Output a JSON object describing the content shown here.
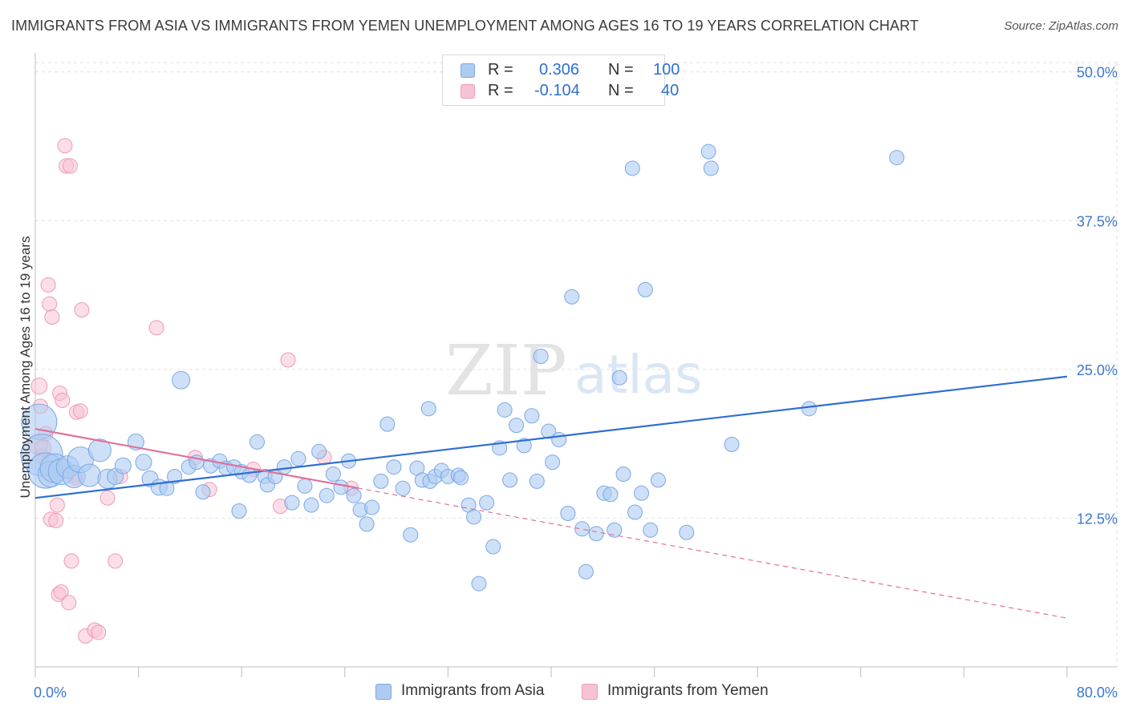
{
  "title": "IMMIGRANTS FROM ASIA VS IMMIGRANTS FROM YEMEN UNEMPLOYMENT AMONG AGES 16 TO 19 YEARS CORRELATION CHART",
  "source": "Source: ZipAtlas.com",
  "watermark": {
    "zip": "ZIP",
    "atlas": "atlas"
  },
  "colors": {
    "asia_fill": "#aecbf2",
    "asia_stroke": "#7aa8e6",
    "asia_line": "#2f6fd3",
    "yemen_fill": "#f7c3d3",
    "yemen_stroke": "#ee9ab6",
    "yemen_line": "#e0709a",
    "axis_text": "#3d78cf",
    "grid": "#e1e1e1"
  },
  "legend": {
    "rows": [
      {
        "r_label": "R =",
        "r_value": "0.306",
        "n_label": "N =",
        "n_value": "100"
      },
      {
        "r_label": "R =",
        "r_value": "-0.104",
        "n_label": "N =",
        "n_value": "40"
      }
    ]
  },
  "chart_data": {
    "type": "scatter",
    "title": "IMMIGRANTS FROM ASIA VS IMMIGRANTS FROM YEMEN UNEMPLOYMENT AMONG AGES 16 TO 19 YEARS CORRELATION CHART",
    "xlabel": "",
    "ylabel": "Unemployment Among Ages 16 to 19 years",
    "xlim": [
      0,
      80
    ],
    "ylim": [
      0,
      52
    ],
    "x_tick_labels": [
      "0.0%",
      "80.0%"
    ],
    "y_ticks": [
      12.5,
      25.0,
      37.5,
      50.0
    ],
    "y_tick_labels": [
      "12.5%",
      "25.0%",
      "37.5%",
      "50.0%"
    ],
    "grid": true,
    "legend_position": "top-center",
    "series": [
      {
        "name": "Immigrants from Asia",
        "r": 0.306,
        "n": 100,
        "trend": {
          "x": [
            0,
            80
          ],
          "y": [
            14.2,
            24.4
          ],
          "dashed_from": null
        },
        "points": [
          [
            0.3,
            20.6,
            22
          ],
          [
            0.5,
            17.8,
            26
          ],
          [
            0.8,
            16.5,
            22
          ],
          [
            1.2,
            16.2,
            16
          ],
          [
            1.5,
            16.7,
            18
          ],
          [
            2.0,
            16.4,
            16
          ],
          [
            2.5,
            16.8,
            14
          ],
          [
            3.0,
            16.0,
            14
          ],
          [
            3.5,
            17.4,
            16
          ],
          [
            4.2,
            16.1,
            14
          ],
          [
            5.0,
            18.2,
            14
          ],
          [
            5.6,
            15.8,
            12
          ],
          [
            6.2,
            16.0,
            10
          ],
          [
            6.8,
            16.9,
            10
          ],
          [
            7.8,
            18.9,
            10
          ],
          [
            8.4,
            17.2,
            10
          ],
          [
            8.9,
            15.8,
            10
          ],
          [
            9.6,
            15.1,
            10
          ],
          [
            10.2,
            15.0,
            9
          ],
          [
            10.8,
            16.0,
            9
          ],
          [
            11.3,
            24.1,
            11
          ],
          [
            11.9,
            16.8,
            9
          ],
          [
            12.5,
            17.2,
            9
          ],
          [
            13.0,
            14.7,
            9
          ],
          [
            13.6,
            16.9,
            9
          ],
          [
            14.3,
            17.3,
            9
          ],
          [
            14.8,
            16.7,
            9
          ],
          [
            15.4,
            16.8,
            9
          ],
          [
            16.0,
            16.4,
            9
          ],
          [
            16.6,
            16.1,
            9
          ],
          [
            15.8,
            13.1,
            9
          ],
          [
            17.2,
            18.9,
            9
          ],
          [
            17.8,
            16.0,
            9
          ],
          [
            18.0,
            15.3,
            9
          ],
          [
            18.6,
            16.0,
            9
          ],
          [
            19.3,
            16.8,
            9
          ],
          [
            19.9,
            13.8,
            9
          ],
          [
            20.4,
            17.5,
            9
          ],
          [
            20.9,
            15.2,
            9
          ],
          [
            21.4,
            13.6,
            9
          ],
          [
            22.0,
            18.1,
            9
          ],
          [
            22.6,
            14.4,
            9
          ],
          [
            23.1,
            16.2,
            9
          ],
          [
            23.7,
            15.1,
            9
          ],
          [
            24.3,
            17.3,
            9
          ],
          [
            24.7,
            14.4,
            9
          ],
          [
            25.2,
            13.2,
            9
          ],
          [
            25.7,
            12.0,
            9
          ],
          [
            26.1,
            13.4,
            9
          ],
          [
            26.8,
            15.6,
            9
          ],
          [
            27.3,
            20.4,
            9
          ],
          [
            27.8,
            16.8,
            9
          ],
          [
            28.5,
            15.0,
            9
          ],
          [
            29.1,
            11.1,
            9
          ],
          [
            29.6,
            16.7,
            9
          ],
          [
            30.0,
            15.7,
            9
          ],
          [
            30.5,
            21.7,
            9
          ],
          [
            30.6,
            15.6,
            9
          ],
          [
            31.0,
            16.0,
            9
          ],
          [
            31.5,
            16.5,
            9
          ],
          [
            32.0,
            16.0,
            9
          ],
          [
            32.8,
            16.1,
            9
          ],
          [
            33.0,
            15.9,
            9
          ],
          [
            33.6,
            13.6,
            9
          ],
          [
            34.0,
            12.6,
            9
          ],
          [
            34.4,
            7.0,
            9
          ],
          [
            35.0,
            13.8,
            9
          ],
          [
            35.5,
            10.1,
            9
          ],
          [
            36.0,
            18.4,
            9
          ],
          [
            36.4,
            21.6,
            9
          ],
          [
            36.8,
            15.7,
            9
          ],
          [
            37.3,
            20.3,
            9
          ],
          [
            37.9,
            18.6,
            9
          ],
          [
            38.5,
            21.1,
            9
          ],
          [
            38.9,
            15.6,
            9
          ],
          [
            39.2,
            26.1,
            9
          ],
          [
            39.8,
            19.8,
            9
          ],
          [
            40.1,
            17.2,
            9
          ],
          [
            40.6,
            19.1,
            9
          ],
          [
            41.3,
            12.9,
            9
          ],
          [
            41.6,
            31.1,
            9
          ],
          [
            42.4,
            11.6,
            9
          ],
          [
            42.7,
            8.0,
            9
          ],
          [
            43.5,
            11.2,
            9
          ],
          [
            44.1,
            14.6,
            9
          ],
          [
            44.6,
            14.5,
            9
          ],
          [
            44.9,
            11.5,
            9
          ],
          [
            45.3,
            24.3,
            9
          ],
          [
            45.6,
            16.2,
            9
          ],
          [
            46.3,
            41.9,
            9
          ],
          [
            46.5,
            13.0,
            9
          ],
          [
            47.0,
            14.6,
            9
          ],
          [
            47.3,
            31.7,
            9
          ],
          [
            47.7,
            11.5,
            9
          ],
          [
            48.3,
            15.7,
            9
          ],
          [
            50.5,
            11.3,
            9
          ],
          [
            52.2,
            43.3,
            9
          ],
          [
            52.4,
            41.9,
            9
          ],
          [
            54.0,
            18.7,
            9
          ],
          [
            60.0,
            21.7,
            9
          ],
          [
            66.8,
            42.8,
            9
          ]
        ]
      },
      {
        "name": "Immigrants from Yemen",
        "r": -0.104,
        "n": 40,
        "trend": {
          "x": [
            0,
            80
          ],
          "y": [
            20.0,
            4.1
          ],
          "dashed_from": 25
        },
        "points": [
          [
            0.2,
            18.7,
            12
          ],
          [
            0.3,
            23.6,
            10
          ],
          [
            0.4,
            21.9,
            9
          ],
          [
            0.5,
            17.7,
            9
          ],
          [
            0.6,
            18.4,
            10
          ],
          [
            0.8,
            19.6,
            9
          ],
          [
            1.0,
            32.1,
            9
          ],
          [
            1.1,
            30.5,
            9
          ],
          [
            1.2,
            12.4,
            9
          ],
          [
            1.3,
            29.4,
            9
          ],
          [
            1.6,
            12.3,
            9
          ],
          [
            1.7,
            13.6,
            9
          ],
          [
            1.8,
            6.1,
            9
          ],
          [
            1.9,
            23.0,
            9
          ],
          [
            2.0,
            6.3,
            9
          ],
          [
            2.1,
            22.4,
            9
          ],
          [
            2.3,
            43.8,
            9
          ],
          [
            2.4,
            42.1,
            9
          ],
          [
            2.6,
            5.4,
            9
          ],
          [
            2.7,
            42.1,
            9
          ],
          [
            2.8,
            8.9,
            9
          ],
          [
            3.0,
            16.1,
            9
          ],
          [
            3.1,
            15.9,
            9
          ],
          [
            3.2,
            21.4,
            9
          ],
          [
            3.5,
            21.5,
            9
          ],
          [
            3.6,
            30.0,
            9
          ],
          [
            3.9,
            2.6,
            9
          ],
          [
            4.6,
            3.1,
            9
          ],
          [
            4.9,
            2.9,
            9
          ],
          [
            5.6,
            14.2,
            9
          ],
          [
            6.2,
            8.9,
            9
          ],
          [
            6.6,
            16.0,
            9
          ],
          [
            9.4,
            28.5,
            9
          ],
          [
            12.4,
            17.6,
            9
          ],
          [
            13.5,
            14.9,
            9
          ],
          [
            16.9,
            16.6,
            9
          ],
          [
            19.0,
            13.5,
            9
          ],
          [
            19.6,
            25.8,
            9
          ],
          [
            22.4,
            17.6,
            9
          ],
          [
            24.5,
            15.0,
            9
          ]
        ]
      }
    ]
  },
  "bottom_legend": [
    "Immigrants from Asia",
    "Immigrants from Yemen"
  ]
}
